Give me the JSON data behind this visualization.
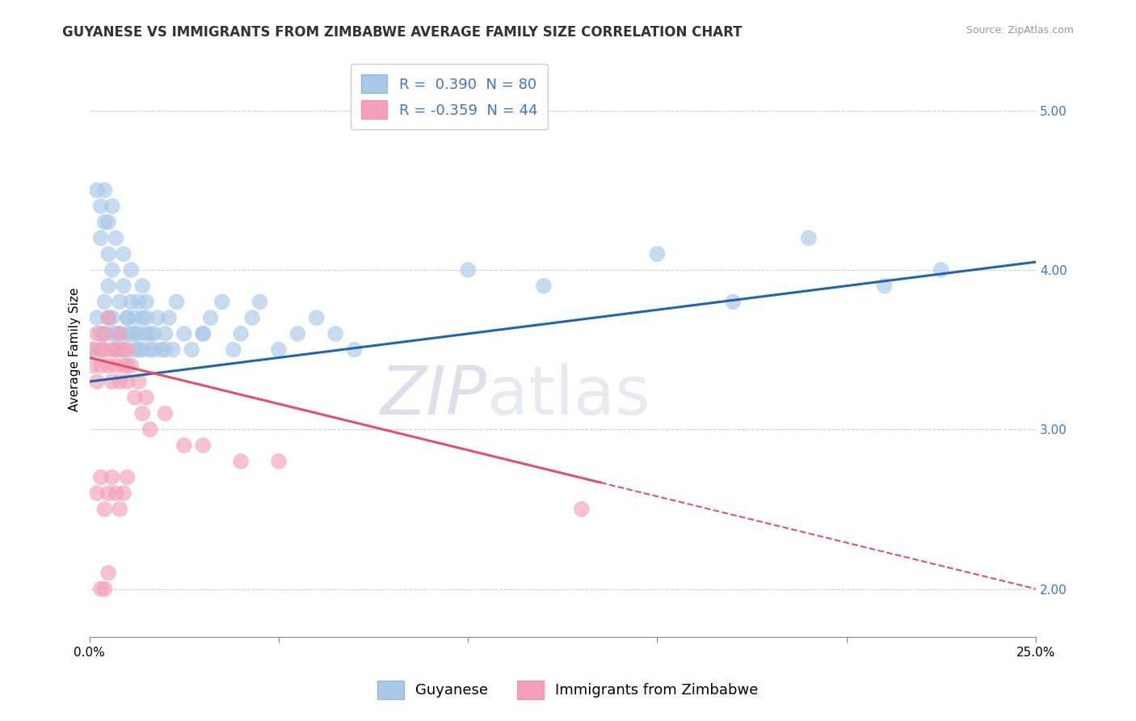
{
  "title": "GUYANESE VS IMMIGRANTS FROM ZIMBABWE AVERAGE FAMILY SIZE CORRELATION CHART",
  "source": "Source: ZipAtlas.com",
  "ylabel": "Average Family Size",
  "watermark_zip": "ZIP",
  "watermark_atlas": "atlas",
  "xlim": [
    0.0,
    0.25
  ],
  "ylim": [
    1.7,
    5.3
  ],
  "yticks": [
    2.0,
    3.0,
    4.0,
    5.0
  ],
  "xticks": [
    0.0,
    0.05,
    0.1,
    0.15,
    0.2,
    0.25
  ],
  "xticklabels": [
    "0.0%",
    "",
    "",
    "",
    "",
    "25.0%"
  ],
  "blue_R": 0.39,
  "blue_N": 80,
  "pink_R": -0.359,
  "pink_N": 44,
  "blue_color": "#a8c8e8",
  "blue_line_color": "#2166ac",
  "pink_color": "#f4a0b8",
  "pink_line_color": "#e05070",
  "blue_scatter_x": [
    0.001,
    0.002,
    0.003,
    0.003,
    0.004,
    0.004,
    0.005,
    0.005,
    0.006,
    0.006,
    0.007,
    0.007,
    0.008,
    0.008,
    0.009,
    0.009,
    0.01,
    0.01,
    0.011,
    0.011,
    0.012,
    0.012,
    0.013,
    0.013,
    0.014,
    0.014,
    0.015,
    0.015,
    0.016,
    0.017,
    0.018,
    0.019,
    0.02,
    0.021,
    0.022,
    0.023,
    0.025,
    0.027,
    0.03,
    0.032,
    0.035,
    0.038,
    0.04,
    0.043,
    0.045,
    0.05,
    0.055,
    0.06,
    0.065,
    0.07,
    0.003,
    0.004,
    0.005,
    0.006,
    0.007,
    0.008,
    0.009,
    0.01,
    0.011,
    0.012,
    0.013,
    0.014,
    0.015,
    0.016,
    0.017,
    0.002,
    0.003,
    0.004,
    0.005,
    0.006,
    0.1,
    0.12,
    0.15,
    0.17,
    0.19,
    0.21,
    0.225,
    0.01,
    0.02,
    0.03
  ],
  "blue_scatter_y": [
    3.5,
    3.7,
    3.6,
    4.2,
    3.8,
    4.3,
    3.9,
    4.1,
    3.7,
    4.0,
    3.6,
    4.2,
    3.8,
    3.5,
    3.9,
    4.1,
    3.7,
    3.6,
    3.8,
    4.0,
    3.6,
    3.7,
    3.5,
    3.8,
    3.7,
    3.9,
    3.6,
    3.8,
    3.5,
    3.6,
    3.7,
    3.5,
    3.6,
    3.7,
    3.5,
    3.8,
    3.6,
    3.5,
    3.6,
    3.7,
    3.8,
    3.5,
    3.6,
    3.7,
    3.8,
    3.5,
    3.6,
    3.7,
    3.6,
    3.5,
    3.5,
    3.6,
    3.7,
    3.6,
    3.5,
    3.6,
    3.5,
    3.7,
    3.6,
    3.5,
    3.6,
    3.5,
    3.7,
    3.6,
    3.5,
    4.5,
    4.4,
    4.5,
    4.3,
    4.4,
    4.0,
    3.9,
    4.1,
    3.8,
    4.2,
    3.9,
    4.0,
    3.4,
    3.5,
    3.6
  ],
  "pink_scatter_x": [
    0.001,
    0.001,
    0.002,
    0.002,
    0.003,
    0.003,
    0.004,
    0.004,
    0.005,
    0.005,
    0.006,
    0.006,
    0.007,
    0.007,
    0.008,
    0.008,
    0.009,
    0.009,
    0.01,
    0.01,
    0.011,
    0.012,
    0.013,
    0.014,
    0.015,
    0.016,
    0.02,
    0.025,
    0.03,
    0.04,
    0.05,
    0.002,
    0.003,
    0.004,
    0.005,
    0.006,
    0.007,
    0.008,
    0.009,
    0.01,
    0.13,
    0.003,
    0.004,
    0.005
  ],
  "pink_scatter_y": [
    3.5,
    3.4,
    3.6,
    3.3,
    3.5,
    3.4,
    3.6,
    3.5,
    3.7,
    3.4,
    3.5,
    3.3,
    3.5,
    3.4,
    3.6,
    3.3,
    3.5,
    3.4,
    3.5,
    3.3,
    3.4,
    3.2,
    3.3,
    3.1,
    3.2,
    3.0,
    3.1,
    2.9,
    2.9,
    2.8,
    2.8,
    2.6,
    2.7,
    2.5,
    2.6,
    2.7,
    2.6,
    2.5,
    2.6,
    2.7,
    2.5,
    2.0,
    2.0,
    2.1
  ],
  "background_color": "#ffffff",
  "grid_color": "#cccccc",
  "title_fontsize": 12,
  "label_fontsize": 11,
  "tick_fontsize": 11,
  "legend_fontsize": 13
}
